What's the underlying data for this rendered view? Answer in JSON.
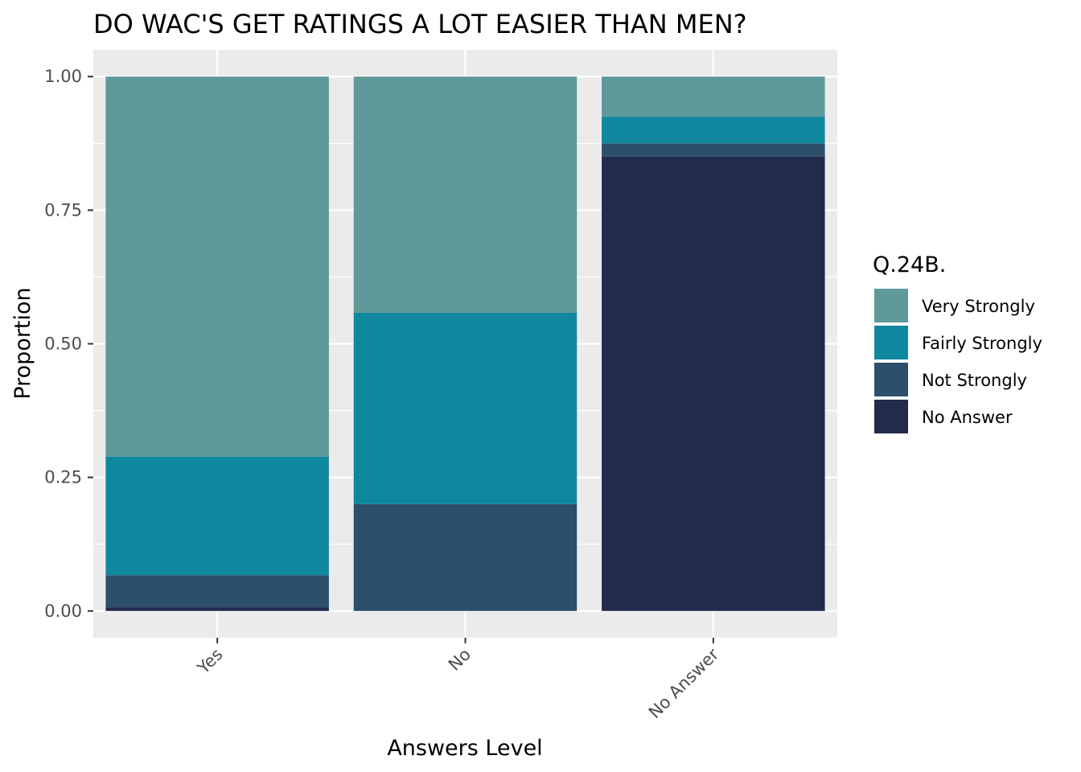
{
  "chart_data": {
    "type": "bar",
    "stacked": true,
    "title": "DO WAC'S GET RATINGS A LOT EASIER THAN MEN?",
    "xlabel": "Answers Level",
    "ylabel": "Proportion",
    "ylim": [
      -0.05,
      1.05
    ],
    "yticks": [
      "0.00",
      "0.25",
      "0.50",
      "0.75",
      "1.00"
    ],
    "categories": [
      "Yes",
      "No",
      "No Answer"
    ],
    "legend_title": "Q.24B.",
    "legend_position": "right",
    "background": "#ebebeb",
    "grid": true,
    "series": [
      {
        "name": "No Answer",
        "color": "#232b4b",
        "values": [
          0.007,
          0.0,
          0.85
        ]
      },
      {
        "name": "Not Strongly",
        "color": "#2c4f6b",
        "values": [
          0.06,
          0.2,
          0.025
        ]
      },
      {
        "name": "Fairly Strongly",
        "color": "#0f879f",
        "values": [
          0.222,
          0.358,
          0.05
        ]
      },
      {
        "name": "Very Strongly",
        "color": "#5f9999",
        "values": [
          0.711,
          0.442,
          0.075
        ]
      }
    ],
    "legend_order": [
      "Very Strongly",
      "Fairly Strongly",
      "Not Strongly",
      "No Answer"
    ]
  }
}
